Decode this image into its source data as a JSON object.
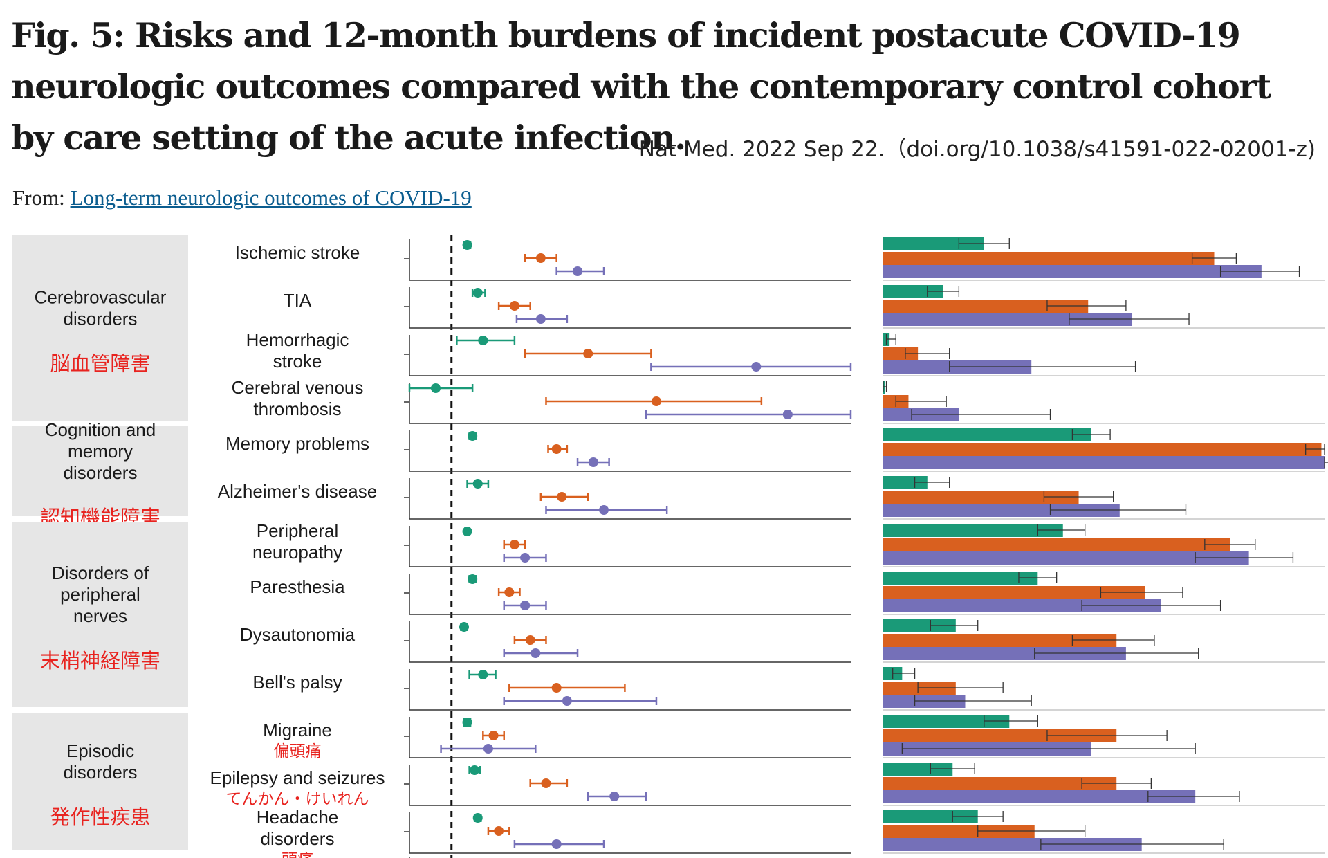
{
  "figure": {
    "title": "Fig. 5: Risks and 12-month burdens of incident postacute COVID-19 neurologic outcomes compared with the contemporary control cohort by care setting of the acute infection.",
    "citation": "Nat Med. 2022 Sep 22.（doi.org/10.1038/s41591-022-02001-z)",
    "from_label": "From:",
    "from_link": "Long-term neurologic outcomes of COVID-19"
  },
  "colors": {
    "group1": "#1a9a78",
    "group2": "#d9601f",
    "group3": "#7570b8",
    "panel_bg": "#e6e6e6",
    "annotation": "#e8231f"
  },
  "chart_data": {
    "type": "forest_and_bar",
    "hazard_ratio_reference": 1,
    "hr_range": [
      0.6,
      4.8
    ],
    "burden_range": [
      0,
      14
    ],
    "categories": [
      {
        "label": "Cerebrovascular\ndisorders",
        "translation": "脳血管障害",
        "rows": [
          0,
          3
        ]
      },
      {
        "label": "Cognition and\nmemory\ndisorders",
        "translation": "認知機能障害",
        "rows": [
          4,
          5
        ]
      },
      {
        "label": "Disorders of\nperipheral\nnerves",
        "translation": "末梢神経障害",
        "rows": [
          6,
          9
        ]
      },
      {
        "label": "Episodic\ndisorders",
        "translation": "発作性疾患",
        "rows": [
          10,
          12
        ]
      }
    ],
    "outcomes": [
      {
        "label": "Ischemic stroke",
        "translation": "",
        "hr": [
          [
            1.15,
            1.12,
            1.18
          ],
          [
            1.85,
            1.7,
            2.0
          ],
          [
            2.2,
            2.0,
            2.45
          ]
        ],
        "burden": [
          [
            3.2,
            2.4,
            4.0
          ],
          [
            10.5,
            9.8,
            11.2
          ],
          [
            12.0,
            10.7,
            13.2
          ]
        ]
      },
      {
        "label": "TIA",
        "translation": "",
        "hr": [
          [
            1.25,
            1.2,
            1.32
          ],
          [
            1.6,
            1.45,
            1.75
          ],
          [
            1.85,
            1.62,
            2.1
          ]
        ],
        "burden": [
          [
            1.9,
            1.4,
            2.4
          ],
          [
            6.5,
            5.2,
            7.7
          ],
          [
            7.9,
            5.9,
            9.7
          ]
        ]
      },
      {
        "label": "Hemorrhagic\nstroke",
        "translation": "",
        "hr": [
          [
            1.3,
            1.05,
            1.6
          ],
          [
            2.3,
            1.7,
            2.9
          ],
          [
            3.9,
            2.9,
            5.1
          ]
        ],
        "burden": [
          [
            0.2,
            0.1,
            0.4
          ],
          [
            1.1,
            0.7,
            2.1
          ],
          [
            4.7,
            2.1,
            8.0
          ]
        ]
      },
      {
        "label": "Cerebral venous\nthrombosis",
        "translation": "",
        "hr": [
          [
            0.85,
            0.6,
            1.2
          ],
          [
            2.95,
            1.9,
            3.95
          ],
          [
            4.2,
            2.85,
            5.5
          ]
        ],
        "burden": [
          [
            0.05,
            0.0,
            0.1
          ],
          [
            0.8,
            0.4,
            2.0
          ],
          [
            2.4,
            0.9,
            5.3
          ]
        ]
      },
      {
        "label": "Memory problems",
        "translation": "",
        "hr": [
          [
            1.2,
            1.17,
            1.23
          ],
          [
            2.0,
            1.92,
            2.1
          ],
          [
            2.35,
            2.2,
            2.5
          ]
        ],
        "burden": [
          [
            6.6,
            6.0,
            7.2
          ],
          [
            13.9,
            13.4,
            14.3
          ],
          [
            15.2,
            14.3,
            16.1
          ]
        ]
      },
      {
        "label": "Alzheimer's disease",
        "translation": "",
        "hr": [
          [
            1.25,
            1.15,
            1.35
          ],
          [
            2.05,
            1.85,
            2.3
          ],
          [
            2.45,
            1.9,
            3.05
          ]
        ],
        "burden": [
          [
            1.4,
            1.0,
            2.1
          ],
          [
            6.2,
            5.1,
            7.3
          ],
          [
            7.5,
            5.3,
            9.6
          ]
        ]
      },
      {
        "label": "Peripheral\nneuropathy",
        "translation": "",
        "hr": [
          [
            1.15,
            1.13,
            1.17
          ],
          [
            1.6,
            1.5,
            1.7
          ],
          [
            1.7,
            1.5,
            1.9
          ]
        ],
        "burden": [
          [
            5.7,
            4.9,
            6.4
          ],
          [
            11.0,
            10.2,
            11.8
          ],
          [
            11.6,
            9.9,
            13.0
          ]
        ]
      },
      {
        "label": "Paresthesia",
        "translation": "",
        "hr": [
          [
            1.2,
            1.17,
            1.23
          ],
          [
            1.55,
            1.45,
            1.65
          ],
          [
            1.7,
            1.5,
            1.9
          ]
        ],
        "burden": [
          [
            4.9,
            4.3,
            5.5
          ],
          [
            8.3,
            6.9,
            9.5
          ],
          [
            8.8,
            6.3,
            10.7
          ]
        ]
      },
      {
        "label": "Dysautonomia",
        "translation": "",
        "hr": [
          [
            1.12,
            1.09,
            1.15
          ],
          [
            1.75,
            1.6,
            1.9
          ],
          [
            1.8,
            1.5,
            2.2
          ]
        ],
        "burden": [
          [
            2.3,
            1.5,
            3.0
          ],
          [
            7.4,
            6.0,
            8.6
          ],
          [
            7.7,
            4.8,
            10.0
          ]
        ]
      },
      {
        "label": "Bell's palsy",
        "translation": "",
        "hr": [
          [
            1.3,
            1.17,
            1.42
          ],
          [
            2.0,
            1.55,
            2.65
          ],
          [
            2.1,
            1.5,
            2.95
          ]
        ],
        "burden": [
          [
            0.6,
            0.3,
            1.0
          ],
          [
            2.3,
            1.1,
            3.8
          ],
          [
            2.6,
            1.0,
            4.7
          ]
        ]
      },
      {
        "label": "Migraine",
        "translation": "偏頭痛",
        "hr": [
          [
            1.15,
            1.12,
            1.18
          ],
          [
            1.4,
            1.3,
            1.5
          ],
          [
            1.35,
            0.9,
            1.8
          ]
        ],
        "burden": [
          [
            4.0,
            3.2,
            4.9
          ],
          [
            7.4,
            5.2,
            9.0
          ],
          [
            6.6,
            0.6,
            9.9
          ]
        ]
      },
      {
        "label": "Epilepsy and seizures",
        "translation": "てんかん・けいれん",
        "hr": [
          [
            1.22,
            1.17,
            1.27
          ],
          [
            1.9,
            1.75,
            2.1
          ],
          [
            2.55,
            2.3,
            2.85
          ]
        ],
        "burden": [
          [
            2.2,
            1.5,
            2.9
          ],
          [
            7.4,
            6.3,
            8.5
          ],
          [
            9.9,
            8.4,
            11.3
          ]
        ]
      },
      {
        "label": "Headache\ndisorders",
        "translation": "頭痛",
        "hr": [
          [
            1.25,
            1.22,
            1.28
          ],
          [
            1.45,
            1.35,
            1.55
          ],
          [
            2.0,
            1.6,
            2.45
          ]
        ],
        "burden": [
          [
            3.0,
            2.2,
            3.8
          ],
          [
            4.8,
            3.0,
            6.4
          ],
          [
            8.2,
            5.0,
            10.8
          ]
        ]
      }
    ]
  }
}
